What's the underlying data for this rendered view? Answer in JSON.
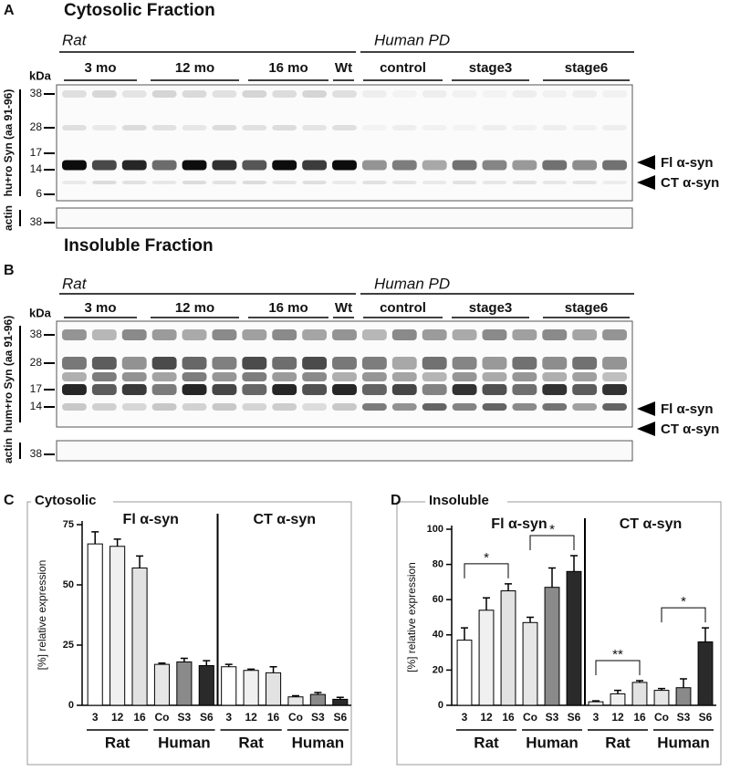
{
  "blots": [
    {
      "label": "A",
      "title": "Cytosolic Fraction",
      "groups": [
        "Rat",
        "Human PD"
      ],
      "lanes": [
        "3 mo",
        "12 mo",
        "16 mo",
        "Wt",
        "control",
        "stage3",
        "stage6"
      ],
      "kda": "kDa",
      "markers": [
        "38",
        "28",
        "17",
        "14",
        "6"
      ],
      "ylabel": "hu+ro Syn (aa 91-96)",
      "loading": "actin",
      "loading_marker": "38",
      "arrows": [
        "Fl α-syn",
        "CT α-syn"
      ]
    },
    {
      "label": "B",
      "title": "Insoluble Fraction",
      "groups": [
        "Rat",
        "Human PD"
      ],
      "lanes": [
        "3 mo",
        "12 mo",
        "16 mo",
        "Wt",
        "control",
        "stage3",
        "stage6"
      ],
      "kda": "kDa",
      "markers": [
        "38",
        "28",
        "17",
        "14"
      ],
      "ylabel": "hum+ro Syn (aa 91-96)",
      "loading": "actin",
      "loading_marker": "38",
      "arrows": [
        "Fl α-syn",
        "CT α-syn"
      ]
    }
  ],
  "chart_data": [
    {
      "type": "bar",
      "label": "C",
      "title": "Cytosolic",
      "ylabel": "[%] relative expression",
      "sections": [
        "Fl α-syn",
        "CT α-syn"
      ],
      "groups": [
        "Rat",
        "Human",
        "Rat",
        "Human"
      ],
      "categories": [
        "3",
        "12",
        "16",
        "Co",
        "S3",
        "S6",
        "3",
        "12",
        "16",
        "Co",
        "S3",
        "S6"
      ],
      "values": [
        67,
        66,
        57,
        17,
        18,
        16.5,
        16,
        14.5,
        13.5,
        3.5,
        4.5,
        2.5
      ],
      "errors": [
        5,
        3,
        5,
        0.5,
        1.5,
        2,
        1,
        0.5,
        2.5,
        0.5,
        0.8,
        0.8
      ],
      "colors": [
        "#ffffff",
        "#f0f0f0",
        "#e2e2e2",
        "#e6e6e6",
        "#8a8a8a",
        "#2a2a2a",
        "#ffffff",
        "#f0f0f0",
        "#e2e2e2",
        "#e6e6e6",
        "#8a8a8a",
        "#2a2a2a"
      ],
      "ylim": [
        0,
        75
      ],
      "yticks": [
        0,
        25,
        50,
        75
      ]
    },
    {
      "type": "bar",
      "label": "D",
      "title": "Insoluble",
      "ylabel": "[%] relative expression",
      "sections": [
        "Fl α-syn",
        "CT α-syn"
      ],
      "groups": [
        "Rat",
        "Human",
        "Rat",
        "Human"
      ],
      "categories": [
        "3",
        "12",
        "16",
        "Co",
        "S3",
        "S6",
        "3",
        "12",
        "16",
        "Co",
        "S3",
        "S6"
      ],
      "values": [
        37,
        54,
        65,
        47,
        67,
        76,
        2,
        6.5,
        13,
        8.5,
        10,
        36
      ],
      "errors": [
        7,
        7,
        4,
        3,
        11,
        9,
        0.5,
        2,
        1,
        1,
        5,
        8
      ],
      "colors": [
        "#ffffff",
        "#f0f0f0",
        "#e2e2e2",
        "#e6e6e6",
        "#8a8a8a",
        "#2a2a2a",
        "#ffffff",
        "#f0f0f0",
        "#e2e2e2",
        "#e6e6e6",
        "#8a8a8a",
        "#2a2a2a"
      ],
      "ylim": [
        0,
        100
      ],
      "yticks": [
        0,
        20,
        40,
        60,
        80,
        100
      ],
      "annotations": [
        "*",
        "*",
        "**",
        "*"
      ]
    }
  ]
}
